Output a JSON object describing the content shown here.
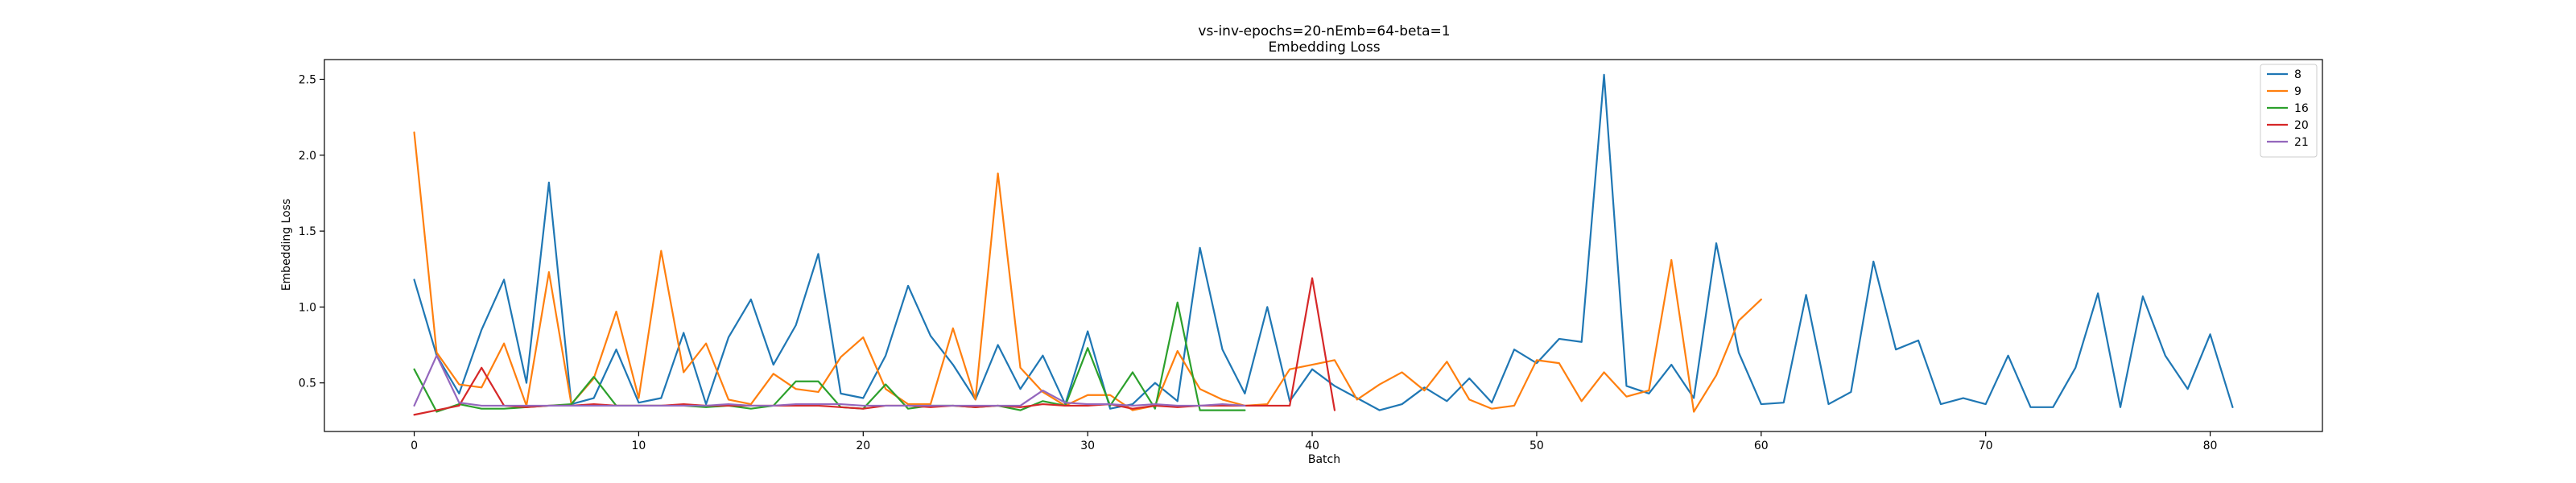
{
  "chart_data": {
    "type": "line",
    "title": "vs-inv-epochs=20-nEmb=64-beta=1",
    "subtitle": "Embedding Loss",
    "xlabel": "Batch",
    "ylabel": "Embedding Loss",
    "xlim": [
      -4,
      85
    ],
    "ylim": [
      0.18,
      2.63
    ],
    "xticks": [
      0,
      10,
      20,
      30,
      40,
      50,
      60,
      70,
      80
    ],
    "yticks": [
      0.5,
      1.0,
      1.5,
      2.0,
      2.5
    ],
    "ytick_labels": [
      "0.5",
      "1.0",
      "1.5",
      "2.0",
      "2.5"
    ],
    "grid": false,
    "legend_position": "top-right",
    "series": [
      {
        "name": "8",
        "color": "#1f77b4",
        "values": [
          1.18,
          0.68,
          0.43,
          0.85,
          1.18,
          0.5,
          1.82,
          0.36,
          0.4,
          0.72,
          0.37,
          0.4,
          0.83,
          0.36,
          0.8,
          1.05,
          0.62,
          0.88,
          1.35,
          0.43,
          0.4,
          0.68,
          1.14,
          0.81,
          0.62,
          0.39,
          0.75,
          0.46,
          0.68,
          0.36,
          0.84,
          0.33,
          0.36,
          0.5,
          0.38,
          1.39,
          0.72,
          0.43,
          1.0,
          0.38,
          0.59,
          0.48,
          0.4,
          0.32,
          0.36,
          0.47,
          0.38,
          0.53,
          0.37,
          0.72,
          0.63,
          0.79,
          0.77,
          2.53,
          0.48,
          0.43,
          0.62,
          0.4,
          1.42,
          0.7,
          0.36,
          0.37,
          1.08,
          0.36,
          0.44,
          1.3,
          0.72,
          0.78,
          0.36,
          0.4,
          0.36,
          0.68,
          0.34,
          0.34,
          0.6,
          1.09,
          0.34,
          1.07,
          0.68,
          0.46,
          0.82,
          0.34
        ]
      },
      {
        "name": "9",
        "color": "#ff7f0e",
        "values": [
          2.15,
          0.7,
          0.49,
          0.47,
          0.76,
          0.35,
          1.23,
          0.36,
          0.53,
          0.97,
          0.4,
          1.37,
          0.57,
          0.76,
          0.39,
          0.36,
          0.56,
          0.46,
          0.44,
          0.67,
          0.8,
          0.46,
          0.36,
          0.36,
          0.86,
          0.39,
          1.88,
          0.6,
          0.44,
          0.35,
          0.42,
          0.42,
          0.32,
          0.35,
          0.71,
          0.46,
          0.39,
          0.35,
          0.36,
          0.59,
          0.62,
          0.65,
          0.39,
          0.49,
          0.57,
          0.45,
          0.64,
          0.39,
          0.33,
          0.35,
          0.65,
          0.63,
          0.38,
          0.57,
          0.41,
          0.45,
          1.31,
          0.31,
          0.55,
          0.91,
          1.05
        ]
      },
      {
        "name": "16",
        "color": "#2ca02c",
        "values": [
          0.59,
          0.31,
          0.36,
          0.33,
          0.33,
          0.34,
          0.35,
          0.36,
          0.54,
          0.35,
          0.35,
          0.35,
          0.35,
          0.34,
          0.35,
          0.33,
          0.35,
          0.51,
          0.51,
          0.34,
          0.33,
          0.49,
          0.33,
          0.35,
          0.35,
          0.34,
          0.35,
          0.32,
          0.38,
          0.35,
          0.73,
          0.35,
          0.57,
          0.33,
          1.03,
          0.32,
          0.32,
          0.32
        ]
      },
      {
        "name": "20",
        "color": "#d62728",
        "values": [
          0.29,
          0.32,
          0.35,
          0.6,
          0.35,
          0.34,
          0.35,
          0.35,
          0.36,
          0.35,
          0.35,
          0.35,
          0.36,
          0.35,
          0.35,
          0.35,
          0.35,
          0.35,
          0.35,
          0.34,
          0.33,
          0.35,
          0.35,
          0.34,
          0.35,
          0.34,
          0.35,
          0.34,
          0.36,
          0.35,
          0.35,
          0.36,
          0.33,
          0.35,
          0.34,
          0.35,
          0.35,
          0.35,
          0.35,
          0.35,
          1.19,
          0.32
        ]
      },
      {
        "name": "21",
        "color": "#9467bd",
        "values": [
          0.35,
          0.68,
          0.37,
          0.35,
          0.35,
          0.35,
          0.35,
          0.35,
          0.35,
          0.35,
          0.35,
          0.35,
          0.35,
          0.35,
          0.36,
          0.35,
          0.35,
          0.36,
          0.36,
          0.36,
          0.35,
          0.35,
          0.35,
          0.35,
          0.35,
          0.35,
          0.35,
          0.35,
          0.45,
          0.37,
          0.36,
          0.36,
          0.35,
          0.36,
          0.35,
          0.35,
          0.36,
          0.35
        ]
      }
    ]
  }
}
